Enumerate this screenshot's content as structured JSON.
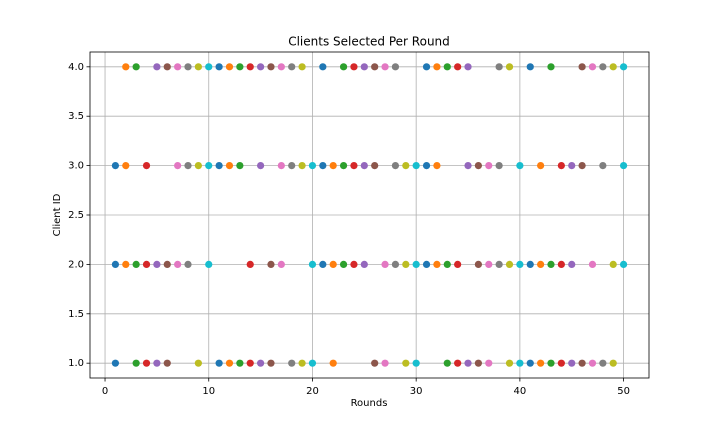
{
  "chart_data": {
    "type": "scatter",
    "title": "Clients Selected Per Round",
    "x_label": "Rounds",
    "y_label": "Client ID",
    "xlim": [
      -1.45,
      52.45
    ],
    "ylim": [
      0.85,
      4.15
    ],
    "xticks": [
      0,
      10,
      20,
      30,
      40,
      50
    ],
    "yticks": [
      {
        "value": 1,
        "label": "1.0"
      },
      {
        "value": 1.5,
        "label": "1.5"
      },
      {
        "value": 2,
        "label": "2.0"
      },
      {
        "value": 2.5,
        "label": "2.5"
      },
      {
        "value": 3,
        "label": "3.0"
      },
      {
        "value": 3.5,
        "label": "3.5"
      },
      {
        "value": 4,
        "label": "4.0"
      }
    ],
    "grid": true,
    "series": [
      {
        "x": [
          1,
          3,
          4,
          5,
          6,
          9,
          11,
          12,
          13,
          14,
          15,
          16,
          18,
          19,
          20,
          22,
          26,
          27,
          29,
          30,
          33,
          34,
          35,
          36,
          37,
          39,
          40,
          41,
          42,
          43,
          44,
          45,
          46,
          47,
          48,
          49
        ],
        "values": [
          1,
          1,
          1,
          1,
          1,
          1,
          1,
          1,
          1,
          1,
          1,
          1,
          1,
          1,
          1,
          1,
          1,
          1,
          1,
          1,
          1,
          1,
          1,
          1,
          1,
          1,
          1,
          1,
          1,
          1,
          1,
          1,
          1,
          1,
          1,
          1
        ],
        "colors": [
          "#1f77b4",
          "#2ca02c",
          "#d62728",
          "#9467bd",
          "#8c564b",
          "#bcbd22",
          "#1f77b4",
          "#ff7f0e",
          "#2ca02c",
          "#d62728",
          "#9467bd",
          "#8c564b",
          "#7f7f7f",
          "#bcbd22",
          "#17becf",
          "#ff7f0e",
          "#8c564b",
          "#e377c2",
          "#bcbd22",
          "#17becf",
          "#2ca02c",
          "#d62728",
          "#9467bd",
          "#8c564b",
          "#e377c2",
          "#bcbd22",
          "#17becf",
          "#1f77b4",
          "#ff7f0e",
          "#2ca02c",
          "#d62728",
          "#9467bd",
          "#8c564b",
          "#e377c2",
          "#7f7f7f",
          "#bcbd22"
        ]
      },
      {
        "x": [
          1,
          2,
          3,
          4,
          5,
          6,
          7,
          8,
          10,
          14,
          16,
          17,
          20,
          21,
          22,
          23,
          24,
          25,
          27,
          28,
          29,
          30,
          31,
          32,
          33,
          34,
          36,
          37,
          38,
          39,
          40,
          41,
          42,
          43,
          44,
          45,
          47,
          49,
          50
        ],
        "values": [
          2,
          2,
          2,
          2,
          2,
          2,
          2,
          2,
          2,
          2,
          2,
          2,
          2,
          2,
          2,
          2,
          2,
          2,
          2,
          2,
          2,
          2,
          2,
          2,
          2,
          2,
          2,
          2,
          2,
          2,
          2,
          2,
          2,
          2,
          2,
          2,
          2,
          2,
          2
        ],
        "colors": [
          "#1f77b4",
          "#ff7f0e",
          "#2ca02c",
          "#d62728",
          "#9467bd",
          "#8c564b",
          "#e377c2",
          "#7f7f7f",
          "#17becf",
          "#d62728",
          "#8c564b",
          "#e377c2",
          "#17becf",
          "#1f77b4",
          "#ff7f0e",
          "#2ca02c",
          "#d62728",
          "#9467bd",
          "#e377c2",
          "#7f7f7f",
          "#bcbd22",
          "#17becf",
          "#1f77b4",
          "#ff7f0e",
          "#2ca02c",
          "#d62728",
          "#8c564b",
          "#e377c2",
          "#7f7f7f",
          "#bcbd22",
          "#17becf",
          "#1f77b4",
          "#ff7f0e",
          "#2ca02c",
          "#d62728",
          "#9467bd",
          "#e377c2",
          "#bcbd22",
          "#17becf"
        ]
      },
      {
        "x": [
          1,
          2,
          4,
          7,
          8,
          9,
          10,
          11,
          12,
          13,
          15,
          17,
          18,
          19,
          20,
          21,
          22,
          23,
          24,
          25,
          26,
          28,
          29,
          30,
          31,
          32,
          35,
          36,
          37,
          38,
          40,
          42,
          44,
          45,
          46,
          48,
          50
        ],
        "values": [
          3,
          3,
          3,
          3,
          3,
          3,
          3,
          3,
          3,
          3,
          3,
          3,
          3,
          3,
          3,
          3,
          3,
          3,
          3,
          3,
          3,
          3,
          3,
          3,
          3,
          3,
          3,
          3,
          3,
          3,
          3,
          3,
          3,
          3,
          3,
          3,
          3
        ],
        "colors": [
          "#1f77b4",
          "#ff7f0e",
          "#d62728",
          "#e377c2",
          "#7f7f7f",
          "#bcbd22",
          "#17becf",
          "#1f77b4",
          "#ff7f0e",
          "#2ca02c",
          "#9467bd",
          "#e377c2",
          "#7f7f7f",
          "#bcbd22",
          "#17becf",
          "#1f77b4",
          "#ff7f0e",
          "#2ca02c",
          "#d62728",
          "#9467bd",
          "#8c564b",
          "#7f7f7f",
          "#bcbd22",
          "#17becf",
          "#1f77b4",
          "#ff7f0e",
          "#9467bd",
          "#8c564b",
          "#e377c2",
          "#7f7f7f",
          "#17becf",
          "#ff7f0e",
          "#d62728",
          "#9467bd",
          "#8c564b",
          "#7f7f7f",
          "#17becf"
        ]
      },
      {
        "x": [
          2,
          3,
          5,
          6,
          7,
          8,
          9,
          10,
          11,
          12,
          13,
          14,
          15,
          16,
          17,
          18,
          19,
          21,
          23,
          24,
          25,
          26,
          27,
          28,
          31,
          32,
          33,
          34,
          35,
          38,
          39,
          41,
          43,
          46,
          47,
          48,
          49,
          50
        ],
        "values": [
          4,
          4,
          4,
          4,
          4,
          4,
          4,
          4,
          4,
          4,
          4,
          4,
          4,
          4,
          4,
          4,
          4,
          4,
          4,
          4,
          4,
          4,
          4,
          4,
          4,
          4,
          4,
          4,
          4,
          4,
          4,
          4,
          4,
          4,
          4,
          4,
          4,
          4
        ],
        "colors": [
          "#ff7f0e",
          "#2ca02c",
          "#9467bd",
          "#8c564b",
          "#e377c2",
          "#7f7f7f",
          "#bcbd22",
          "#17becf",
          "#1f77b4",
          "#ff7f0e",
          "#2ca02c",
          "#d62728",
          "#9467bd",
          "#8c564b",
          "#e377c2",
          "#7f7f7f",
          "#bcbd22",
          "#1f77b4",
          "#2ca02c",
          "#d62728",
          "#9467bd",
          "#8c564b",
          "#e377c2",
          "#7f7f7f",
          "#1f77b4",
          "#ff7f0e",
          "#2ca02c",
          "#d62728",
          "#9467bd",
          "#7f7f7f",
          "#bcbd22",
          "#1f77b4",
          "#2ca02c",
          "#8c564b",
          "#e377c2",
          "#7f7f7f",
          "#bcbd22",
          "#17becf"
        ]
      }
    ]
  }
}
